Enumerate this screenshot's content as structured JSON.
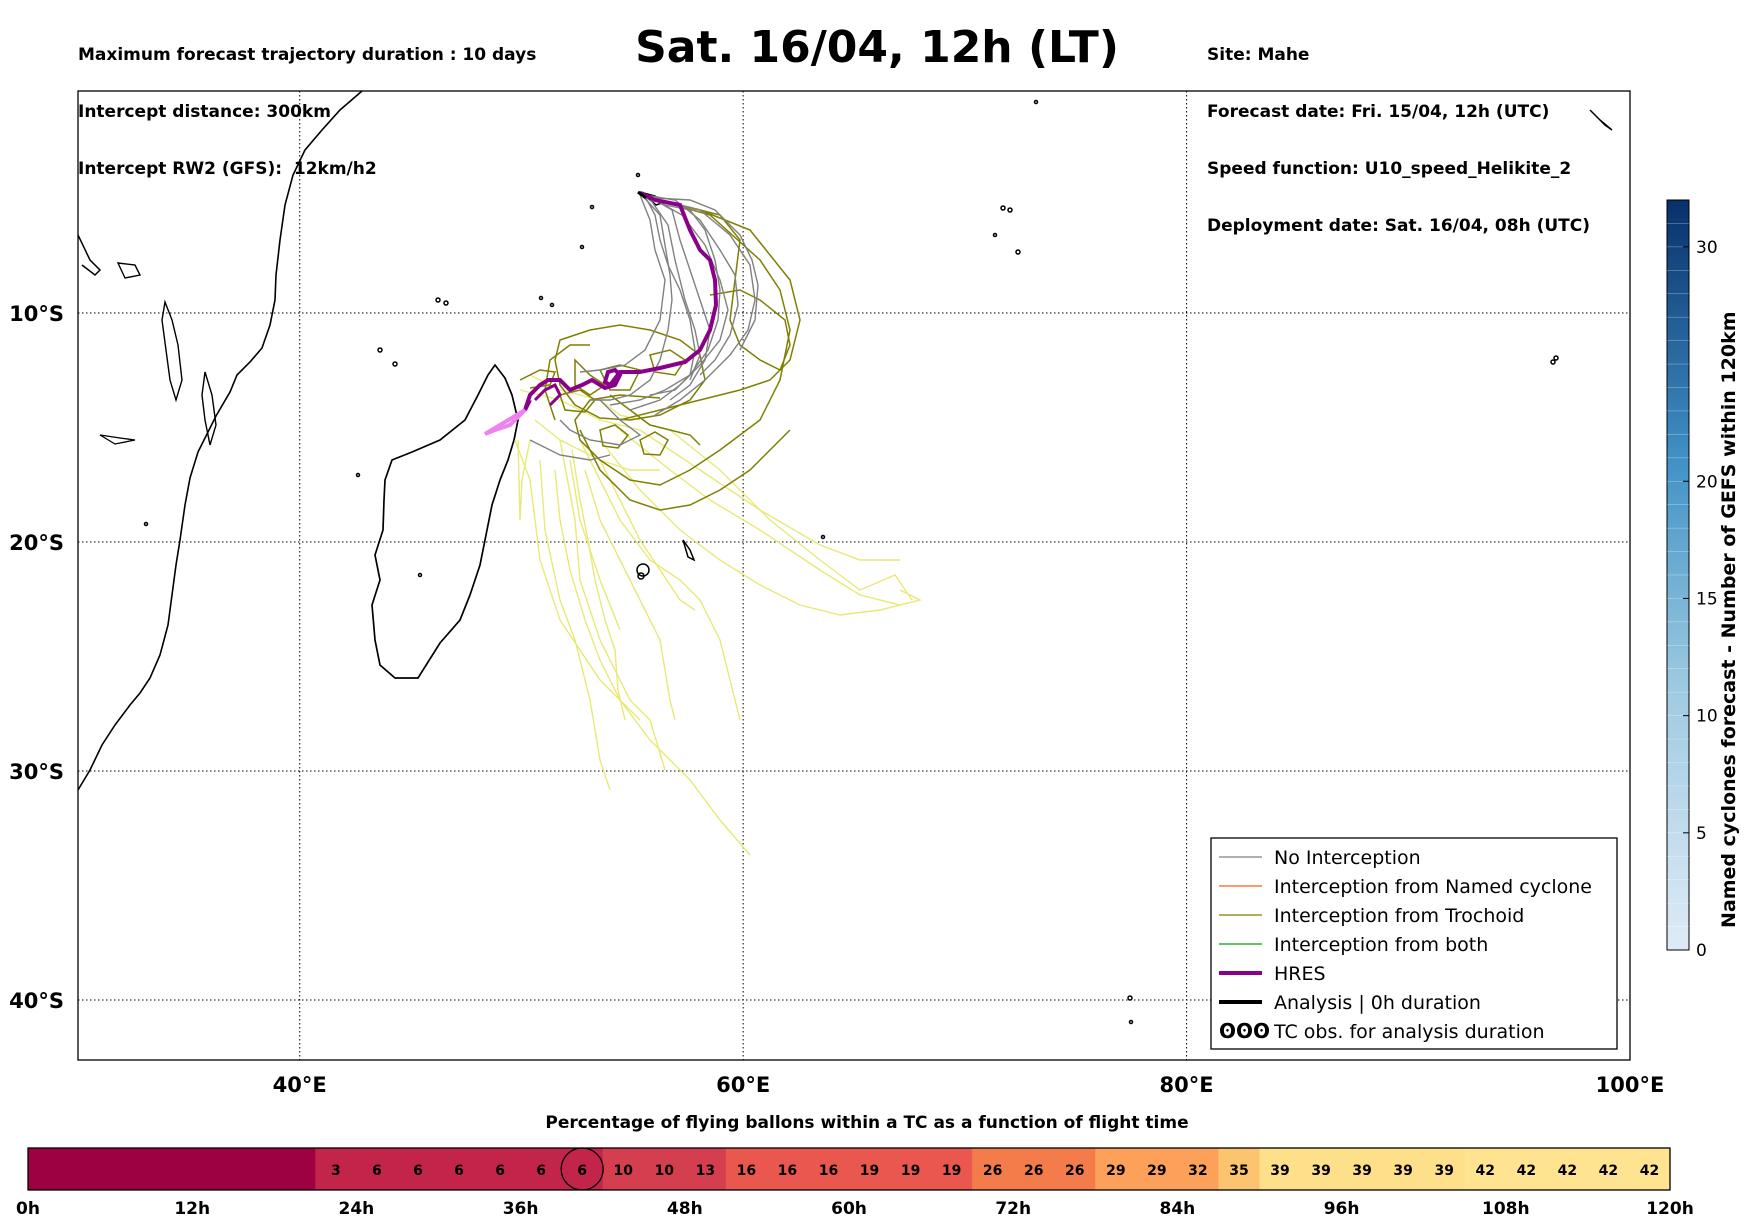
{
  "header_left": [
    "Maximum forecast trajectory duration : 10 days",
    "Intercept distance: 300km",
    "Intercept RW2 (GFS):  12km/h2"
  ],
  "header_right": [
    "Site: Mahe",
    "Forecast date: Fri. 15/04, 12h (UTC)",
    "Speed function: U10_speed_Helikite_2",
    "Deployment date: Sat. 16/04, 08h (UTC)"
  ],
  "title": "Sat. 16/04, 12h (LT)",
  "map": {
    "lat_labels": [
      {
        "lat": -10,
        "label": "10°S"
      },
      {
        "lat": -20,
        "label": "20°S"
      },
      {
        "lat": -30,
        "label": "30°S"
      },
      {
        "lat": -40,
        "label": "40°S"
      }
    ],
    "lon_labels": [
      {
        "lon": 40,
        "label": "40°E"
      },
      {
        "lon": 60,
        "label": "60°E"
      },
      {
        "lon": 80,
        "label": "80°E"
      },
      {
        "lon": 100,
        "label": "100°E"
      }
    ],
    "colors": {
      "no_interception": "#808080",
      "named_cyclone": "#ff5a14",
      "trochoid": "#7f7f00",
      "both": "#00a000",
      "hres": "#8b008b",
      "analysis": "#000000",
      "yellow_tracks": "#e8e870"
    }
  },
  "legend": {
    "items": [
      {
        "key": "no_interception",
        "label": "No Interception"
      },
      {
        "key": "named_cyclone",
        "label": "Interception from Named cyclone"
      },
      {
        "key": "trochoid",
        "label": "Interception from Trochoid"
      },
      {
        "key": "both",
        "label": "Interception from both"
      },
      {
        "key": "hres",
        "label": "HRES"
      },
      {
        "key": "analysis",
        "label": "Analysis | 0h duration"
      },
      {
        "key": "tc_obs",
        "label": "TC obs. for analysis duration",
        "symbol": "ʘʘʘ"
      }
    ]
  },
  "colorbar": {
    "label": "Named cyclones forecast - Number of GEFS within 120km",
    "ticks": [
      0,
      5,
      10,
      15,
      20,
      30
    ],
    "max": 32
  },
  "timeline": {
    "title": "Percentage of flying ballons within a TC as a function of flight time",
    "hours": [
      "0h",
      "12h",
      "24h",
      "36h",
      "48h",
      "60h",
      "72h",
      "84h",
      "96h",
      "108h",
      "120h"
    ],
    "values": [
      "",
      "",
      "",
      "",
      "",
      "",
      "",
      "3",
      "6",
      "6",
      "6",
      "6",
      "6",
      "6",
      "10",
      "10",
      "13",
      "16",
      "16",
      "16",
      "19",
      "19",
      "19",
      "26",
      "26",
      "26",
      "29",
      "29",
      "32",
      "35",
      "39",
      "39",
      "39",
      "39",
      "39",
      "42",
      "42",
      "42",
      "42",
      "42"
    ],
    "current_index": 13
  }
}
